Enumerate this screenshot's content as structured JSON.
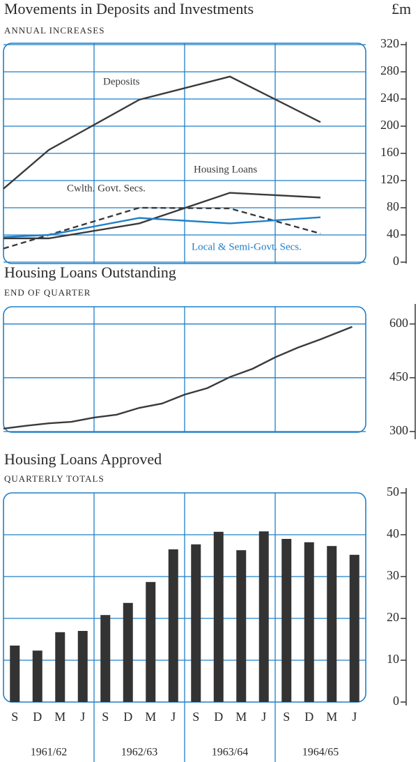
{
  "chart_data": [
    {
      "type": "line",
      "title": "Movements in Deposits and Investments",
      "subtitle": "ANNUAL INCREASES",
      "unit": "£m",
      "xlim": [
        0,
        16
      ],
      "ylim": [
        0,
        320
      ],
      "yticks": [
        0,
        40,
        80,
        120,
        160,
        200,
        240,
        280,
        320
      ],
      "grid": true,
      "series": [
        {
          "name": "Deposits",
          "color": "#3a3a3a",
          "linestyle": "solid",
          "x": [
            0,
            2,
            6,
            10,
            14
          ],
          "values": [
            108,
            165,
            239,
            273,
            206
          ]
        },
        {
          "name": "Housing Loans",
          "color": "#3a3a3a",
          "linestyle": "solid",
          "x": [
            0,
            2,
            6,
            10,
            14
          ],
          "values": [
            35,
            35,
            57,
            102,
            95
          ]
        },
        {
          "name": "Cwlth. Govt. Secs.",
          "color": "#3a3a3a",
          "linestyle": "dashed",
          "x": [
            0,
            6,
            10,
            14
          ],
          "values": [
            20,
            80,
            79,
            42
          ]
        },
        {
          "name": "Local & Semi-Govt. Secs.",
          "color": "#1f7fc8",
          "linestyle": "solid",
          "x": [
            0,
            2,
            6,
            10,
            14
          ],
          "values": [
            37,
            40,
            65,
            57,
            66
          ]
        }
      ]
    },
    {
      "type": "line",
      "title": "Housing Loans Outstanding",
      "subtitle": "END OF QUARTER",
      "xlim": [
        0,
        16
      ],
      "ylim": [
        298,
        648
      ],
      "yticks": [
        300,
        450,
        600
      ],
      "grid": true,
      "series": [
        {
          "color": "#3a3a3a",
          "linestyle": "solid",
          "x": [
            0,
            1,
            2,
            3,
            4,
            5,
            6,
            7,
            8,
            9,
            10,
            11,
            12,
            13,
            14,
            15.4
          ],
          "values": [
            308,
            316,
            323,
            327,
            339,
            347,
            366,
            378,
            403,
            421,
            452,
            475,
            507,
            534,
            557,
            592
          ]
        }
      ]
    },
    {
      "type": "bar",
      "title": "Housing Loans Approved",
      "subtitle": "QUARTERLY TOTALS",
      "ylim": [
        0,
        50
      ],
      "yticks": [
        0,
        10,
        20,
        30,
        40,
        50
      ],
      "grid": true,
      "color": "#333333",
      "categories": [
        "S",
        "D",
        "M",
        "J",
        "S",
        "D",
        "M",
        "J",
        "S",
        "D",
        "M",
        "J",
        "S",
        "D",
        "M",
        "J"
      ],
      "groups": [
        "1961/62",
        "1962/63",
        "1963/64",
        "1964/65"
      ],
      "values": [
        13.5,
        12.3,
        16.7,
        17.0,
        20.8,
        23.7,
        28.7,
        36.5,
        37.7,
        40.7,
        36.3,
        40.8,
        39.0,
        38.2,
        37.3,
        35.2
      ]
    }
  ]
}
